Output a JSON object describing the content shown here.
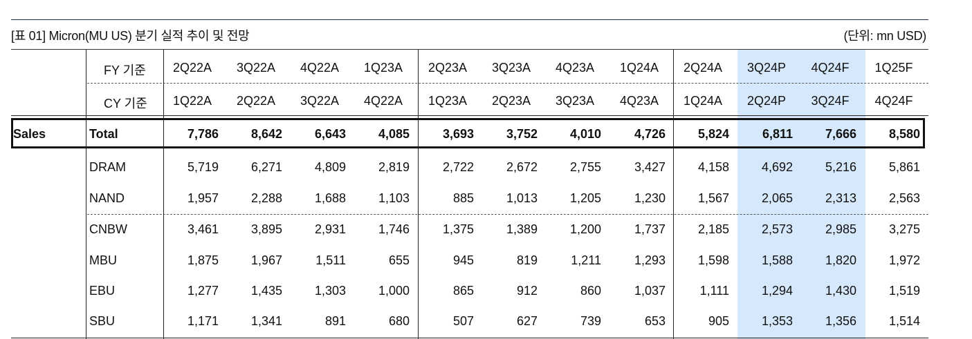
{
  "title": "[표 01] Micron(MU US) 분기 실적 추이 및 전망",
  "unit": "(단위: mn USD)",
  "colors": {
    "highlight": "#d6e8fb",
    "rule": "#222222"
  },
  "header": {
    "fy_label": "FY 기준",
    "cy_label": "CY 기준",
    "fy": [
      "2Q22A",
      "3Q22A",
      "4Q22A",
      "1Q23A",
      "2Q23A",
      "3Q23A",
      "4Q23A",
      "1Q24A",
      "2Q24A",
      "3Q24P",
      "4Q24F",
      "1Q25F"
    ],
    "cy": [
      "1Q22A",
      "2Q22A",
      "3Q22A",
      "4Q22A",
      "1Q23A",
      "2Q23A",
      "3Q23A",
      "4Q23A",
      "1Q24A",
      "2Q24P",
      "3Q24F",
      "4Q24F"
    ]
  },
  "rows": [
    {
      "group": "Sales",
      "label": "Total",
      "bold": true,
      "values": [
        "7,786",
        "8,642",
        "6,643",
        "4,085",
        "3,693",
        "3,752",
        "4,010",
        "4,726",
        "5,824",
        "6,811",
        "7,666",
        "8,580"
      ]
    },
    {
      "group": "",
      "label": "DRAM",
      "values": [
        "5,719",
        "6,271",
        "4,809",
        "2,819",
        "2,722",
        "2,672",
        "2,755",
        "3,427",
        "4,158",
        "4,692",
        "5,216",
        "5,861"
      ]
    },
    {
      "group": "",
      "label": "NAND",
      "values": [
        "1,957",
        "2,288",
        "1,688",
        "1,103",
        "885",
        "1,013",
        "1,205",
        "1,230",
        "1,567",
        "2,065",
        "2,313",
        "2,563"
      ]
    },
    {
      "group": "",
      "label": "CNBW",
      "values": [
        "3,461",
        "3,895",
        "2,931",
        "1,746",
        "1,375",
        "1,389",
        "1,200",
        "1,737",
        "2,185",
        "2,573",
        "2,985",
        "3,275"
      ]
    },
    {
      "group": "",
      "label": "MBU",
      "values": [
        "1,875",
        "1,967",
        "1,511",
        "655",
        "945",
        "819",
        "1,211",
        "1,293",
        "1,598",
        "1,588",
        "1,820",
        "1,972"
      ]
    },
    {
      "group": "",
      "label": "EBU",
      "values": [
        "1,277",
        "1,435",
        "1,303",
        "1,000",
        "865",
        "912",
        "860",
        "1,037",
        "1,111",
        "1,294",
        "1,430",
        "1,519"
      ]
    },
    {
      "group": "",
      "label": "SBU",
      "values": [
        "1,171",
        "1,341",
        "891",
        "680",
        "507",
        "627",
        "739",
        "653",
        "905",
        "1,353",
        "1,356",
        "1,514"
      ]
    }
  ]
}
